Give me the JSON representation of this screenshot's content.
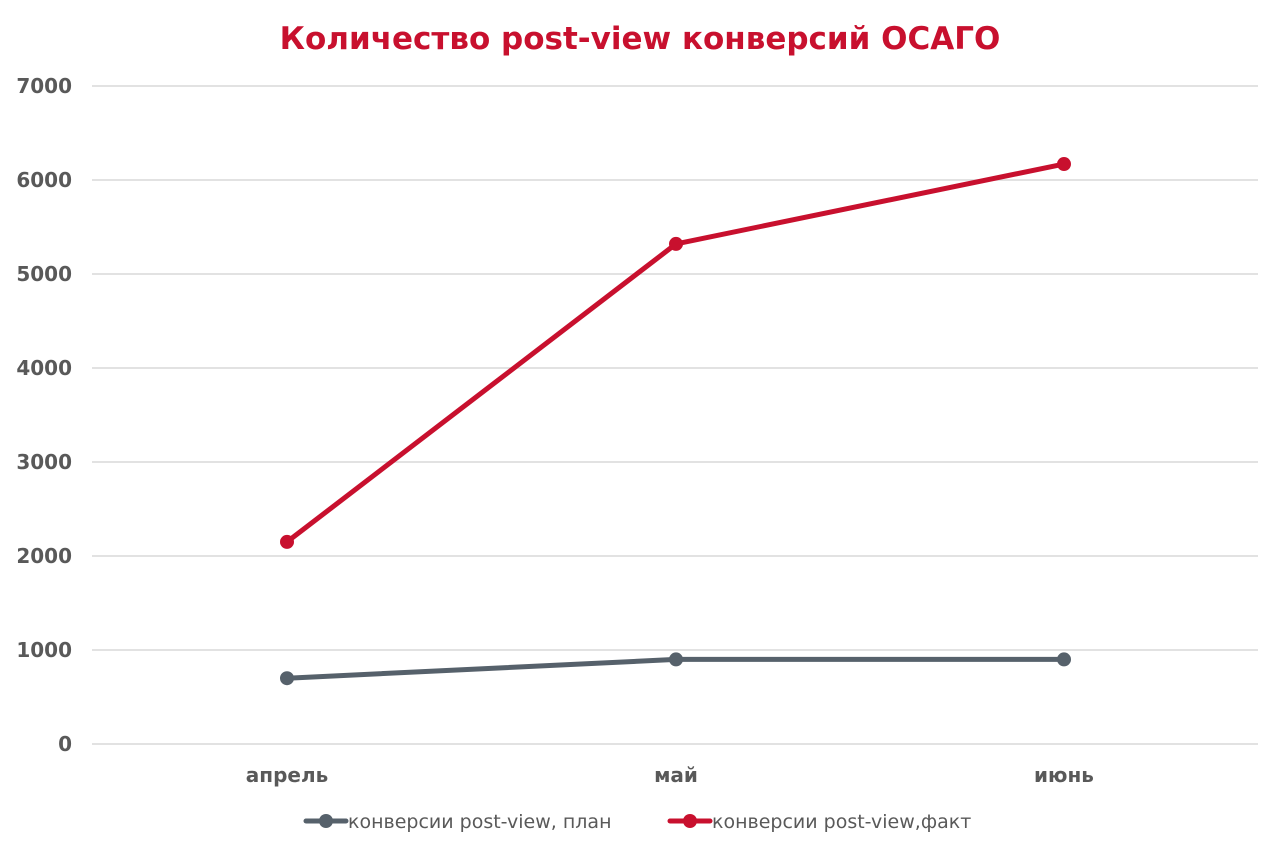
{
  "chart_data": {
    "type": "line",
    "title": "Количество post-view конверсий ОСАГО",
    "categories": [
      "апрель",
      "май",
      "июнь"
    ],
    "ylim": [
      0,
      7000
    ],
    "yticks": [
      0,
      1000,
      2000,
      3000,
      4000,
      5000,
      6000,
      7000
    ],
    "grid": true,
    "legend_position": "bottom",
    "title_color": "#c8102e",
    "series": [
      {
        "name": "конверсии post-view, план",
        "values": [
          700,
          900,
          900
        ],
        "color": "#56616b"
      },
      {
        "name": "конверсии post-view,факт",
        "values": [
          2150,
          5320,
          6170
        ],
        "color": "#c8102e"
      }
    ]
  }
}
